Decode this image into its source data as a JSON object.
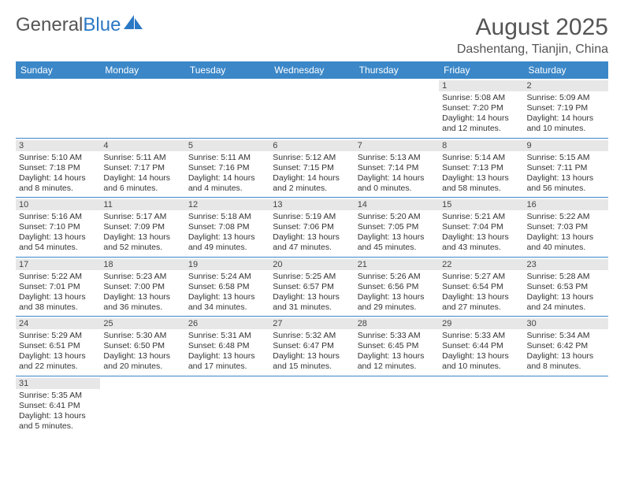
{
  "logo": {
    "part1": "General",
    "part2": "Blue"
  },
  "title": "August 2025",
  "location": "Dashentang, Tianjin, China",
  "colors": {
    "header_bg": "#3b87c8",
    "header_text": "#ffffff",
    "daynum_bg": "#e7e7e7",
    "border": "#3b87c8",
    "logo_blue": "#2b78c5",
    "logo_grey": "#555555"
  },
  "day_headers": [
    "Sunday",
    "Monday",
    "Tuesday",
    "Wednesday",
    "Thursday",
    "Friday",
    "Saturday"
  ],
  "weeks": [
    [
      null,
      null,
      null,
      null,
      null,
      {
        "n": "1",
        "sr": "Sunrise: 5:08 AM",
        "ss": "Sunset: 7:20 PM",
        "dl": "Daylight: 14 hours and 12 minutes."
      },
      {
        "n": "2",
        "sr": "Sunrise: 5:09 AM",
        "ss": "Sunset: 7:19 PM",
        "dl": "Daylight: 14 hours and 10 minutes."
      }
    ],
    [
      {
        "n": "3",
        "sr": "Sunrise: 5:10 AM",
        "ss": "Sunset: 7:18 PM",
        "dl": "Daylight: 14 hours and 8 minutes."
      },
      {
        "n": "4",
        "sr": "Sunrise: 5:11 AM",
        "ss": "Sunset: 7:17 PM",
        "dl": "Daylight: 14 hours and 6 minutes."
      },
      {
        "n": "5",
        "sr": "Sunrise: 5:11 AM",
        "ss": "Sunset: 7:16 PM",
        "dl": "Daylight: 14 hours and 4 minutes."
      },
      {
        "n": "6",
        "sr": "Sunrise: 5:12 AM",
        "ss": "Sunset: 7:15 PM",
        "dl": "Daylight: 14 hours and 2 minutes."
      },
      {
        "n": "7",
        "sr": "Sunrise: 5:13 AM",
        "ss": "Sunset: 7:14 PM",
        "dl": "Daylight: 14 hours and 0 minutes."
      },
      {
        "n": "8",
        "sr": "Sunrise: 5:14 AM",
        "ss": "Sunset: 7:13 PM",
        "dl": "Daylight: 13 hours and 58 minutes."
      },
      {
        "n": "9",
        "sr": "Sunrise: 5:15 AM",
        "ss": "Sunset: 7:11 PM",
        "dl": "Daylight: 13 hours and 56 minutes."
      }
    ],
    [
      {
        "n": "10",
        "sr": "Sunrise: 5:16 AM",
        "ss": "Sunset: 7:10 PM",
        "dl": "Daylight: 13 hours and 54 minutes."
      },
      {
        "n": "11",
        "sr": "Sunrise: 5:17 AM",
        "ss": "Sunset: 7:09 PM",
        "dl": "Daylight: 13 hours and 52 minutes."
      },
      {
        "n": "12",
        "sr": "Sunrise: 5:18 AM",
        "ss": "Sunset: 7:08 PM",
        "dl": "Daylight: 13 hours and 49 minutes."
      },
      {
        "n": "13",
        "sr": "Sunrise: 5:19 AM",
        "ss": "Sunset: 7:06 PM",
        "dl": "Daylight: 13 hours and 47 minutes."
      },
      {
        "n": "14",
        "sr": "Sunrise: 5:20 AM",
        "ss": "Sunset: 7:05 PM",
        "dl": "Daylight: 13 hours and 45 minutes."
      },
      {
        "n": "15",
        "sr": "Sunrise: 5:21 AM",
        "ss": "Sunset: 7:04 PM",
        "dl": "Daylight: 13 hours and 43 minutes."
      },
      {
        "n": "16",
        "sr": "Sunrise: 5:22 AM",
        "ss": "Sunset: 7:03 PM",
        "dl": "Daylight: 13 hours and 40 minutes."
      }
    ],
    [
      {
        "n": "17",
        "sr": "Sunrise: 5:22 AM",
        "ss": "Sunset: 7:01 PM",
        "dl": "Daylight: 13 hours and 38 minutes."
      },
      {
        "n": "18",
        "sr": "Sunrise: 5:23 AM",
        "ss": "Sunset: 7:00 PM",
        "dl": "Daylight: 13 hours and 36 minutes."
      },
      {
        "n": "19",
        "sr": "Sunrise: 5:24 AM",
        "ss": "Sunset: 6:58 PM",
        "dl": "Daylight: 13 hours and 34 minutes."
      },
      {
        "n": "20",
        "sr": "Sunrise: 5:25 AM",
        "ss": "Sunset: 6:57 PM",
        "dl": "Daylight: 13 hours and 31 minutes."
      },
      {
        "n": "21",
        "sr": "Sunrise: 5:26 AM",
        "ss": "Sunset: 6:56 PM",
        "dl": "Daylight: 13 hours and 29 minutes."
      },
      {
        "n": "22",
        "sr": "Sunrise: 5:27 AM",
        "ss": "Sunset: 6:54 PM",
        "dl": "Daylight: 13 hours and 27 minutes."
      },
      {
        "n": "23",
        "sr": "Sunrise: 5:28 AM",
        "ss": "Sunset: 6:53 PM",
        "dl": "Daylight: 13 hours and 24 minutes."
      }
    ],
    [
      {
        "n": "24",
        "sr": "Sunrise: 5:29 AM",
        "ss": "Sunset: 6:51 PM",
        "dl": "Daylight: 13 hours and 22 minutes."
      },
      {
        "n": "25",
        "sr": "Sunrise: 5:30 AM",
        "ss": "Sunset: 6:50 PM",
        "dl": "Daylight: 13 hours and 20 minutes."
      },
      {
        "n": "26",
        "sr": "Sunrise: 5:31 AM",
        "ss": "Sunset: 6:48 PM",
        "dl": "Daylight: 13 hours and 17 minutes."
      },
      {
        "n": "27",
        "sr": "Sunrise: 5:32 AM",
        "ss": "Sunset: 6:47 PM",
        "dl": "Daylight: 13 hours and 15 minutes."
      },
      {
        "n": "28",
        "sr": "Sunrise: 5:33 AM",
        "ss": "Sunset: 6:45 PM",
        "dl": "Daylight: 13 hours and 12 minutes."
      },
      {
        "n": "29",
        "sr": "Sunrise: 5:33 AM",
        "ss": "Sunset: 6:44 PM",
        "dl": "Daylight: 13 hours and 10 minutes."
      },
      {
        "n": "30",
        "sr": "Sunrise: 5:34 AM",
        "ss": "Sunset: 6:42 PM",
        "dl": "Daylight: 13 hours and 8 minutes."
      }
    ],
    [
      {
        "n": "31",
        "sr": "Sunrise: 5:35 AM",
        "ss": "Sunset: 6:41 PM",
        "dl": "Daylight: 13 hours and 5 minutes."
      },
      null,
      null,
      null,
      null,
      null,
      null
    ]
  ]
}
